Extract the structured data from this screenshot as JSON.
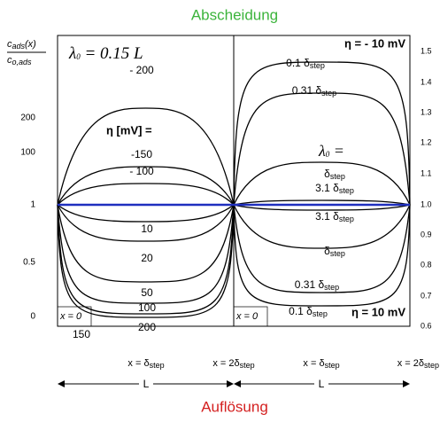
{
  "header": {
    "title": "Abscheidung",
    "footer": "Auflösung"
  },
  "y_label": {
    "top": "c",
    "top_sub": "ads",
    "top_tail": "(x)",
    "bottom": "c",
    "bottom_sub": "o,ads"
  },
  "left_ticks": [
    "200",
    "100",
    "1",
    "0.5",
    "0"
  ],
  "right_ticks": [
    "1.5",
    "1.4",
    "1.3",
    "1.2",
    "1.1",
    "1.0",
    "0.9",
    "0.8",
    "0.7",
    "0.6"
  ],
  "left_panel": {
    "lambda": "λ",
    "lambda_sub": "0",
    "lambda_eq": " = 0.15 L",
    "eta_label": "η [mV] =",
    "curve_labels": [
      "- 200",
      "-150",
      "- 100",
      "10",
      "20",
      "50",
      "100",
      "150",
      "200"
    ],
    "origin": "x = 0"
  },
  "right_panel": {
    "top_eta": "η = - 10 mV",
    "bottom_eta": "η = 10 mV",
    "lambda": "λ",
    "lambda_sub": "0",
    "lambda_eq": " =",
    "curve_labels": [
      {
        "text": "0.1 δ",
        "sub": "step"
      },
      {
        "text": "0.31 δ",
        "sub": "step"
      },
      {
        "text": "δ",
        "sub": "step"
      },
      {
        "text": "3.1 δ",
        "sub": "step"
      },
      {
        "text": "3.1 δ",
        "sub": "step"
      },
      {
        "text": "δ",
        "sub": "step"
      },
      {
        "text": "0.31 δ",
        "sub": "step"
      },
      {
        "text": "0.1 δ",
        "sub": "step"
      }
    ],
    "origin": "x = 0"
  },
  "x_labels": [
    {
      "text": "x = δ",
      "sub": "step"
    },
    {
      "text": "x = 2δ",
      "sub": "step"
    },
    {
      "text": "x = δ",
      "sub": "step"
    },
    {
      "text": "x = 2δ",
      "sub": "step"
    }
  ],
  "length_labels": [
    "L",
    "L"
  ]
}
